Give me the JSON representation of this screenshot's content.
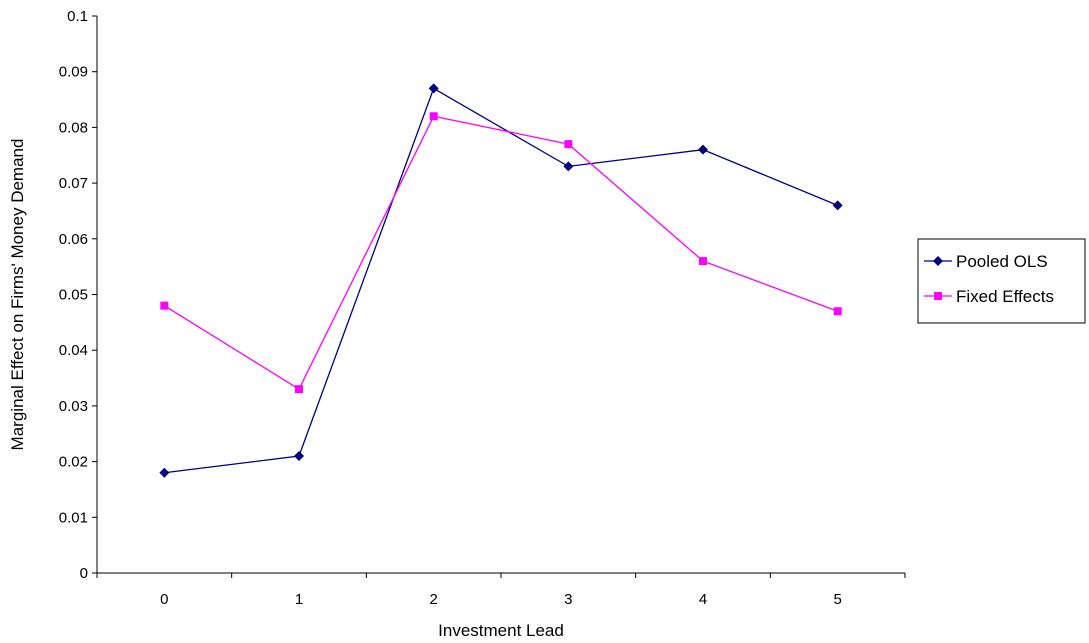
{
  "chart_data": {
    "type": "line",
    "x": [
      0,
      1,
      2,
      3,
      4,
      5
    ],
    "categories": [
      "0",
      "1",
      "2",
      "3",
      "4",
      "5"
    ],
    "xlabel": "Investment Lead",
    "ylabel": "Marginal Effect on Firms' Money Demand",
    "ylim": [
      0,
      0.1
    ],
    "yticks": [
      0,
      0.01,
      0.02,
      0.03,
      0.04,
      0.05,
      0.06,
      0.07,
      0.08,
      0.09,
      0.1
    ],
    "ytick_labels": [
      "0",
      "0.01",
      "0.02",
      "0.03",
      "0.04",
      "0.05",
      "0.06",
      "0.07",
      "0.08",
      "0.09",
      "0.1"
    ],
    "grid": false,
    "legend_position": "right",
    "series": [
      {
        "name": "Pooled OLS",
        "marker": "diamond",
        "color": "#000080",
        "values": [
          0.018,
          0.021,
          0.087,
          0.073,
          0.076,
          0.066
        ]
      },
      {
        "name": "Fixed Effects",
        "marker": "square",
        "color": "#ff00ff",
        "values": [
          0.048,
          0.033,
          0.082,
          0.077,
          0.056,
          0.047
        ]
      }
    ]
  }
}
